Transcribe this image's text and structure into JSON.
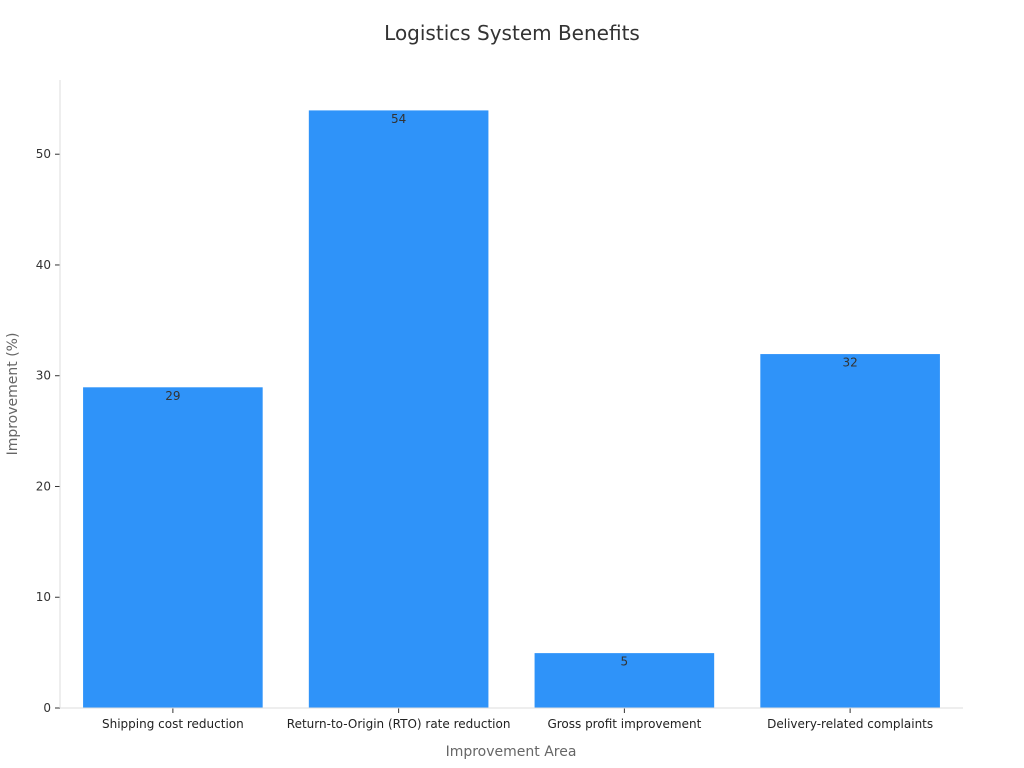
{
  "chart_data": {
    "type": "bar",
    "title": "Logistics System Benefits",
    "xlabel": "Improvement Area",
    "ylabel": "Improvement (%)",
    "categories": [
      "Shipping cost reduction",
      "Return-to-Origin (RTO) rate reduction",
      "Gross profit improvement",
      "Delivery-related complaints"
    ],
    "values": [
      29,
      54,
      5,
      32
    ],
    "ylim": [
      0,
      56.7
    ],
    "yticks": [
      0,
      10,
      20,
      30,
      40,
      50
    ],
    "bar_color": "#2f93f9",
    "bar_edge_color": "#ffffff",
    "grid": false,
    "legend": "none"
  }
}
